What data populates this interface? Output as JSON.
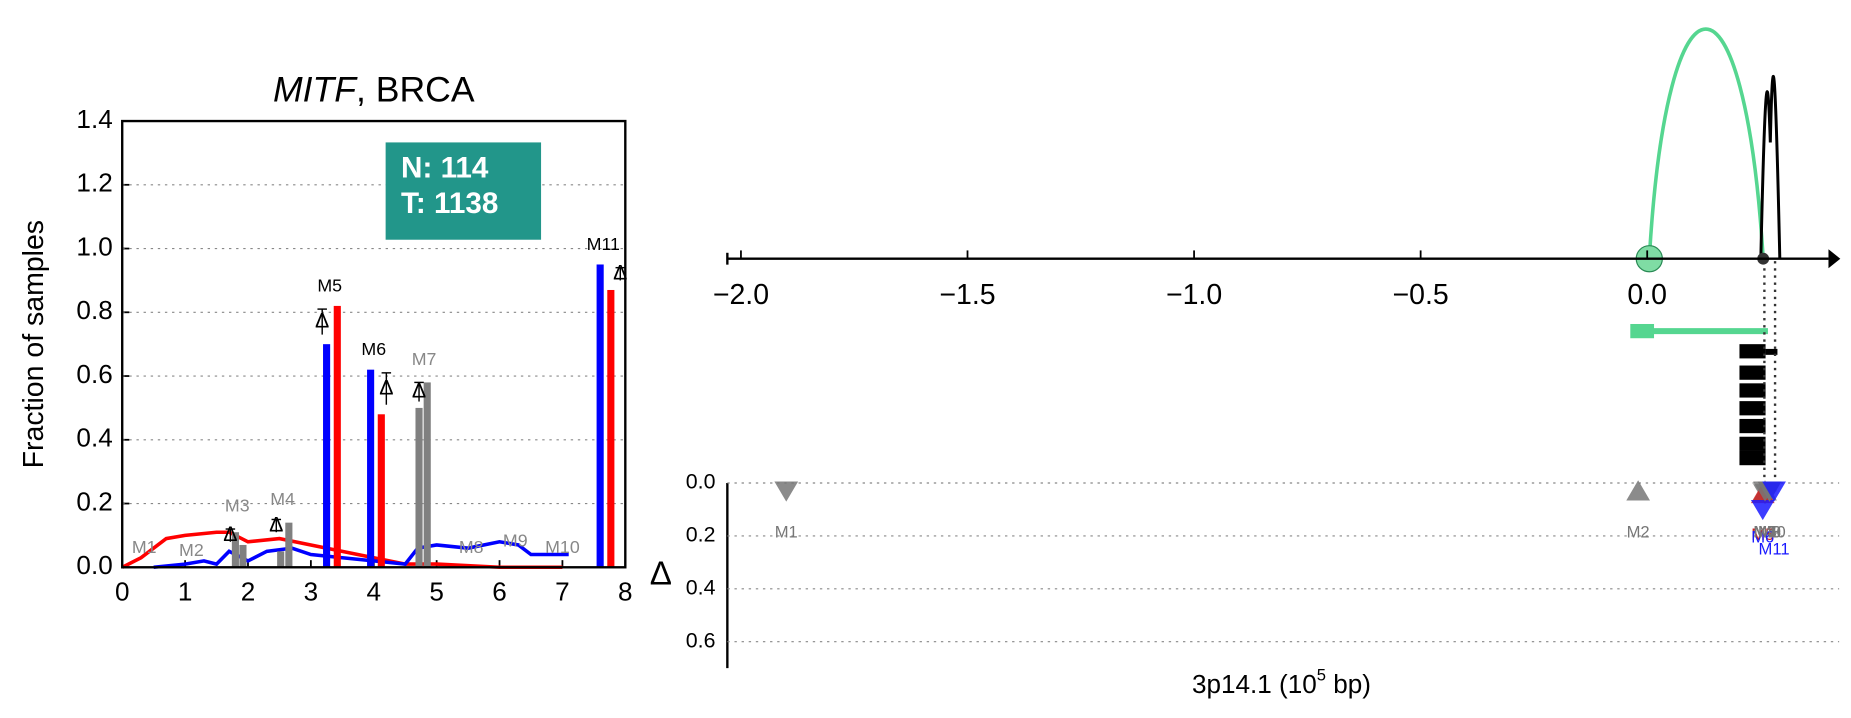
{
  "chart_data": [
    {
      "type": "bar",
      "title_gene": "MITF",
      "title_rest": ", BRCA",
      "y_label": "Fraction of samples",
      "xlim": [
        0,
        8
      ],
      "xticks": [
        0,
        1,
        2,
        3,
        4,
        5,
        6,
        7,
        8
      ],
      "ylim": [
        0,
        1.4
      ],
      "yticks": [
        {
          "value": 0,
          "label": "0.0"
        },
        {
          "value": 0.2,
          "label": "0.2"
        },
        {
          "value": 0.4,
          "label": "0.4"
        },
        {
          "value": 0.6,
          "label": "0.6"
        },
        {
          "value": 0.8,
          "label": "0.8"
        },
        {
          "value": 1.0,
          "label": "1.0"
        },
        {
          "value": 1.2,
          "label": "1.2"
        },
        {
          "value": 1.4,
          "label": "1.4"
        }
      ],
      "grid": true,
      "box_lines": [
        "N: 114",
        "T: 1138"
      ],
      "box_color": "#22968a",
      "bar_series": [
        {
          "color": "#0000ff",
          "x": [
            3.25,
            3.95,
            7.6
          ],
          "values": [
            0.7,
            0.62,
            0.95
          ]
        },
        {
          "color": "#ff0000",
          "x": [
            3.42,
            4.12,
            7.77
          ],
          "values": [
            0.82,
            0.48,
            0.87
          ]
        },
        {
          "color": "#808080",
          "x": [
            1.8,
            1.92,
            2.52,
            2.65,
            4.72,
            4.85
          ],
          "values": [
            0.11,
            0.07,
            0.05,
            0.14,
            0.5,
            0.58
          ]
        }
      ],
      "delta_symbol": "Δ",
      "deltas": {
        "x": [
          1.72,
          2.45,
          3.18,
          4.2,
          4.72,
          7.92
        ],
        "values": [
          0.1,
          0.13,
          0.77,
          0.56,
          0.55,
          0.92
        ],
        "errors": [
          0.02,
          0.02,
          0.04,
          0.05,
          0.03,
          0.02
        ]
      },
      "marker_labels": {
        "names": [
          "M1",
          "M2",
          "M3",
          "M4",
          "M5",
          "M6",
          "M7",
          "M8",
          "M9",
          "M10",
          "M11"
        ],
        "x": [
          0.35,
          1.1,
          1.83,
          2.55,
          3.3,
          4.0,
          4.8,
          5.55,
          6.25,
          7.0,
          7.65
        ],
        "y": [
          0.06,
          0.05,
          0.19,
          0.21,
          0.88,
          0.68,
          0.65,
          0.06,
          0.08,
          0.06,
          1.01
        ],
        "colors": [
          "#888888",
          "#888888",
          "#888888",
          "#888888",
          "#000000",
          "#000000",
          "#888888",
          "#888888",
          "#888888",
          "#888888",
          "#000000"
        ]
      },
      "lines": [
        {
          "color": "#ff0000",
          "x": [
            0,
            0.3,
            0.7,
            1,
            1.5,
            1.7,
            2,
            2.5,
            3,
            3.5,
            4,
            4.5,
            5,
            6,
            7
          ],
          "values": [
            0,
            0.03,
            0.09,
            0.1,
            0.11,
            0.11,
            0.08,
            0.09,
            0.07,
            0.05,
            0.03,
            0.01,
            0.01,
            0,
            0
          ]
        },
        {
          "color": "#0000ff",
          "x": [
            0.5,
            1,
            1.3,
            1.5,
            1.7,
            2,
            2.3,
            2.7,
            3,
            3.5,
            4.5,
            4.7,
            5,
            5.5,
            6,
            6.3,
            6.5,
            7,
            7.1
          ],
          "values": [
            0,
            0.01,
            0.02,
            0.01,
            0.05,
            0.02,
            0.05,
            0.06,
            0.04,
            0.03,
            0.01,
            0.06,
            0.07,
            0.06,
            0.08,
            0.07,
            0.04,
            0.04,
            0.04
          ]
        }
      ]
    },
    {
      "type": "track",
      "xlim": [
        -2.03,
        0.4
      ],
      "xticks": [
        {
          "value": -2.0,
          "label": "−2.0"
        },
        {
          "value": -1.5,
          "label": "−1.5"
        },
        {
          "value": -1.0,
          "label": "−1.0"
        },
        {
          "value": -0.5,
          "label": "−0.5"
        },
        {
          "value": 0.0,
          "label": "0.0"
        }
      ],
      "y_label": "Δ",
      "ylim": [
        0,
        0.7
      ],
      "yticks": [
        {
          "value": 0,
          "label": "0.0"
        },
        {
          "value": 0.2,
          "label": "0.2"
        },
        {
          "value": 0.4,
          "label": "0.4"
        },
        {
          "value": 0.6,
          "label": "0.6"
        }
      ],
      "grid": true,
      "x_label_main": "3p14.1 (10",
      "x_label_sup": "5",
      "x_label_end": " bp)",
      "markers": {
        "names": [
          "M1",
          "M2",
          "M3",
          "M4",
          "M5",
          "M6",
          "M7",
          "M8",
          "M9",
          "M10",
          "M11"
        ],
        "x": [
          -1.9,
          -0.02,
          0.26,
          0.26,
          0.255,
          0.255,
          0.26,
          0.27,
          0.27,
          0.27,
          0.28
        ],
        "values": [
          0.03,
          0.03,
          0.04,
          0.03,
          0.04,
          0.1,
          0.03,
          0.03,
          0.03,
          0.03,
          0.03
        ],
        "colors": [
          "#777777",
          "#777777",
          "#777777",
          "#777777",
          "#cc2222",
          "#1a1aff",
          "#777777",
          "#777777",
          "#777777",
          "#777777",
          "#1a1aff"
        ],
        "shapes": [
          "down",
          "up",
          "down",
          "up",
          "up",
          "down",
          "down",
          "down",
          "down",
          "down",
          "down"
        ]
      }
    }
  ]
}
